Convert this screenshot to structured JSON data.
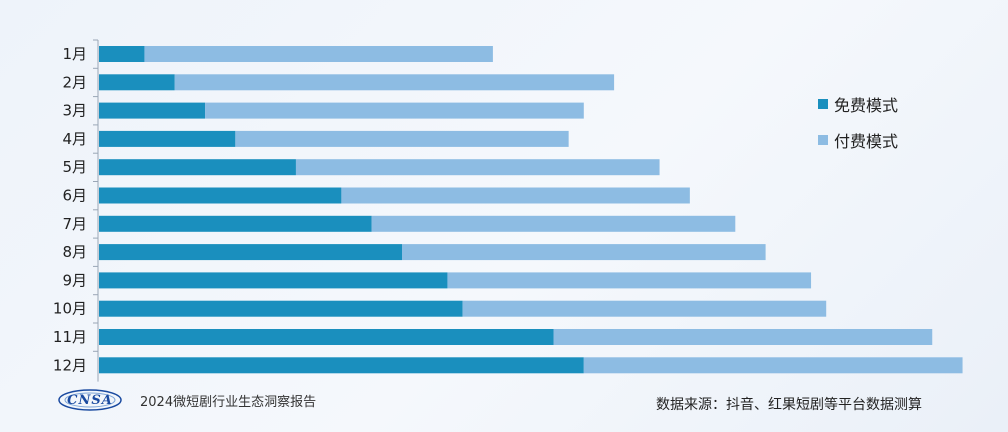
{
  "chart_data": {
    "type": "bar",
    "orientation": "horizontal",
    "stacked": true,
    "categories": [
      "1月",
      "2月",
      "3月",
      "4月",
      "5月",
      "6月",
      "7月",
      "8月",
      "9月",
      "10月",
      "11月",
      "12月"
    ],
    "series": [
      {
        "name": "免费模式",
        "color": "#1a8fbe",
        "values": [
          3,
          5,
          7,
          9,
          13,
          16,
          18,
          20,
          23,
          24,
          30,
          32
        ]
      },
      {
        "name": "付费模式",
        "color": "#8dbce3",
        "values": [
          23,
          29,
          25,
          22,
          24,
          23,
          24,
          24,
          24,
          24,
          25,
          25
        ]
      }
    ],
    "xlim": [
      0,
      60
    ],
    "grid": false,
    "legend_position": "right"
  },
  "footer": {
    "logo_text": "CNSA",
    "report_title": "2024微短剧行业生态洞察报告",
    "source": "数据来源：抖音、红果短剧等平台数据测算"
  }
}
